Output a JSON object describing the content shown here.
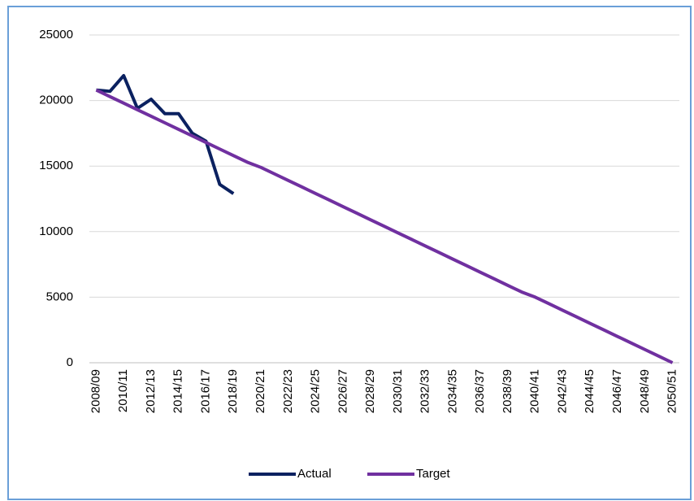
{
  "chart_data": {
    "type": "line",
    "categories": [
      "2008/09",
      null,
      "2010/11",
      null,
      "2012/13",
      null,
      "2014/15",
      null,
      "2016/17",
      null,
      "2018/19",
      null,
      "2020/21",
      null,
      "2022/23",
      null,
      "2024/25",
      null,
      "2026/27",
      null,
      "2028/29",
      null,
      "2030/31",
      null,
      "2032/33",
      null,
      "2034/35",
      null,
      "2036/37",
      null,
      "2038/39",
      null,
      "2040/41",
      null,
      "2042/43",
      null,
      "2044/45",
      null,
      "2046/47",
      null,
      "2048/49",
      null,
      "2050/51"
    ],
    "series": [
      {
        "name": "Actual",
        "color": "#0b2160",
        "values": [
          20800,
          20700,
          21900,
          19400,
          20100,
          19000,
          19000,
          17500,
          16900,
          13600,
          12900,
          null,
          null,
          null,
          null,
          null,
          null,
          null,
          null,
          null,
          null,
          null,
          null,
          null,
          null,
          null,
          null,
          null,
          null,
          null,
          null,
          null,
          null,
          null,
          null,
          null,
          null,
          null,
          null,
          null,
          null,
          null,
          null
        ]
      },
      {
        "name": "Target",
        "color": "#7030a0",
        "values": [
          20800,
          20300,
          19800,
          19300,
          18800,
          18300,
          17800,
          17300,
          16800,
          16300,
          15800,
          15300,
          14900,
          14400,
          13900,
          13400,
          12900,
          12400,
          11900,
          11400,
          10900,
          10400,
          9900,
          9400,
          8900,
          8400,
          7900,
          7400,
          6900,
          6400,
          5900,
          5400,
          5000,
          4500,
          4000,
          3500,
          3000,
          2500,
          2000,
          1500,
          1000,
          500,
          0
        ]
      }
    ],
    "ylim": [
      0,
      25000
    ],
    "yticks": [
      0,
      5000,
      10000,
      15000,
      20000,
      25000
    ],
    "grid": true,
    "legend": "bottom"
  }
}
